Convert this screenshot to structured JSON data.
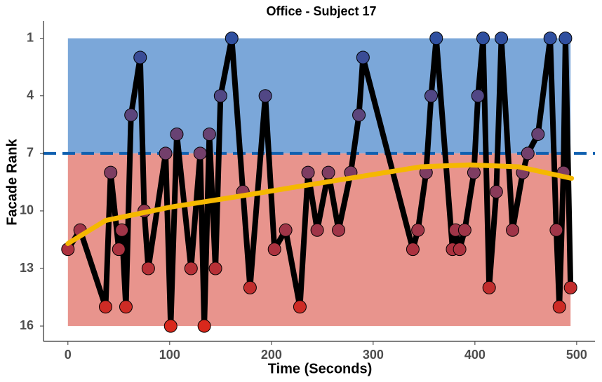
{
  "chart_data": {
    "type": "line",
    "title": "Office - Subject 17",
    "x_label": "Time (Seconds)",
    "y_label": "Facade Rank",
    "x": [
      0,
      12,
      37,
      42,
      50,
      53,
      57,
      62,
      71,
      75,
      79,
      96,
      101,
      107,
      121,
      130,
      134,
      139,
      145,
      150,
      161,
      172,
      179,
      194,
      203,
      214,
      228,
      236,
      245,
      256,
      266,
      278,
      286,
      290,
      339,
      344,
      352,
      357,
      362,
      378,
      381,
      385,
      390,
      399,
      403,
      408,
      414,
      421,
      426,
      437,
      447,
      452,
      462,
      474,
      480,
      483,
      487,
      489,
      494
    ],
    "values": [
      12,
      11,
      15,
      8,
      12,
      11,
      15,
      5,
      2,
      10,
      13,
      7,
      16,
      6,
      13,
      7,
      16,
      6,
      13,
      4,
      1,
      9,
      14,
      4,
      12,
      11,
      15,
      8,
      11,
      8,
      11,
      8,
      5,
      2,
      12,
      11,
      8,
      4,
      1,
      12,
      11,
      12,
      11,
      8,
      4,
      1,
      14,
      9,
      1,
      11,
      8,
      7,
      6,
      1,
      11,
      15,
      8,
      1,
      14
    ],
    "line_color": "#000000",
    "point_colors": [
      "#2f4f9f",
      "#d9281c"
    ],
    "trend": {
      "color": "#f5b800",
      "x": [
        0,
        37,
        101,
        161,
        230,
        300,
        347,
        395,
        443,
        495
      ],
      "values": [
        11.7,
        10.5,
        9.8,
        9.3,
        8.7,
        8.1,
        7.7,
        7.6,
        7.7,
        8.3
      ]
    },
    "bands": [
      {
        "x": [
          0,
          494
        ],
        "y": [
          1,
          7
        ],
        "color": "#7ba7d9"
      },
      {
        "x": [
          0,
          494
        ],
        "y": [
          7,
          16
        ],
        "color": "#e8948d"
      }
    ],
    "threshold": {
      "value": 7,
      "color": "#1060b0"
    },
    "xlim": [
      -24,
      518
    ],
    "ylim": [
      0.1,
      16.8
    ],
    "y_reversed": true,
    "xticks": [
      0,
      100,
      200,
      300,
      400,
      500
    ],
    "yticks": [
      1,
      4,
      7,
      10,
      13,
      16
    ]
  }
}
